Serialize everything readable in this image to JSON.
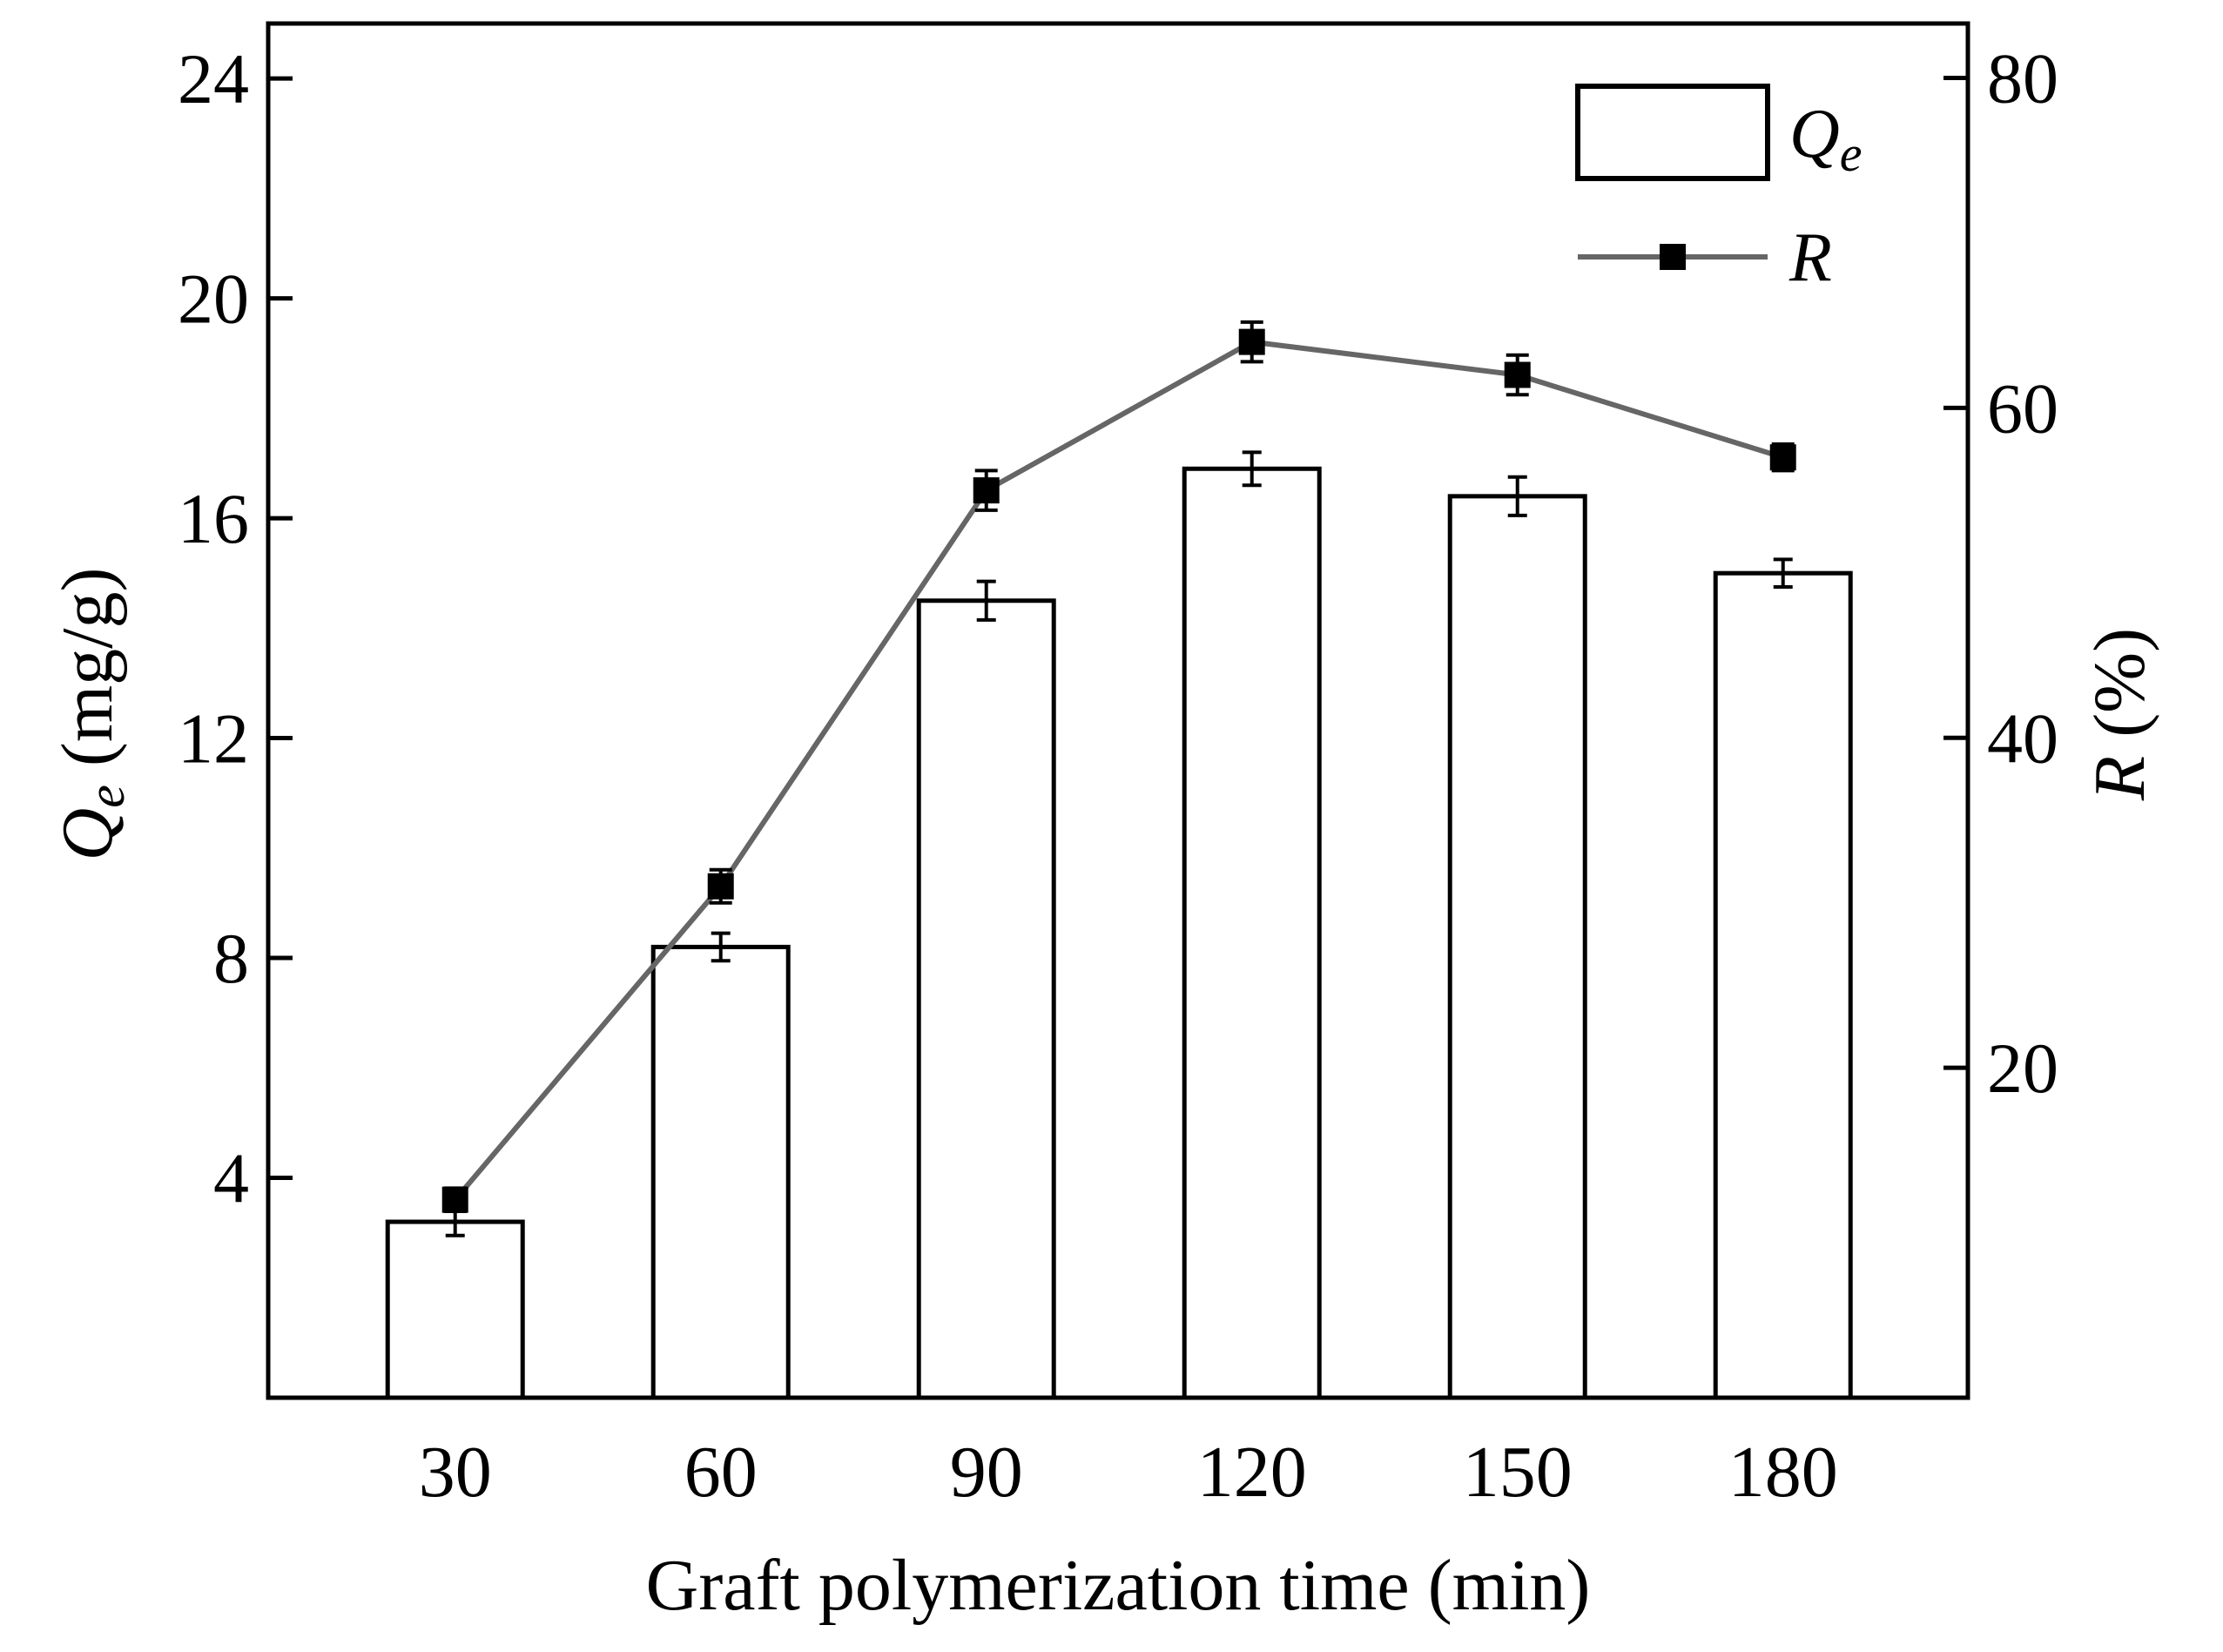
{
  "chart_data": {
    "type": "bar",
    "title": "",
    "xlabel": "Graft polymerization time (min)",
    "categories": [
      "30",
      "60",
      "90",
      "120",
      "150",
      "180"
    ],
    "left_axis": {
      "label_symbol": "Q",
      "label_subscript": "e",
      "label_unit": " (mg/g)",
      "ylim": [
        0,
        25
      ],
      "ticks": [
        4,
        8,
        12,
        16,
        20,
        24
      ]
    },
    "right_axis": {
      "label_symbol": "R",
      "label_unit": " (%)",
      "ylim": [
        0,
        83.3
      ],
      "ticks": [
        20,
        40,
        60,
        80
      ]
    },
    "series": [
      {
        "name": "Qe",
        "legend_symbol": "Q",
        "legend_subscript": "e",
        "kind": "bar",
        "axis": "left",
        "values": [
          3.2,
          8.2,
          14.5,
          16.9,
          16.4,
          15.0
        ],
        "errors": [
          0.25,
          0.25,
          0.35,
          0.3,
          0.35,
          0.25
        ]
      },
      {
        "name": "R",
        "legend_symbol": "R",
        "kind": "line",
        "axis": "right",
        "color": "#666666",
        "values": [
          12.0,
          31.0,
          55.0,
          64.0,
          62.0,
          57.0
        ],
        "errors": [
          0.7,
          1.0,
          1.2,
          1.2,
          1.2,
          0.8
        ]
      }
    ]
  }
}
